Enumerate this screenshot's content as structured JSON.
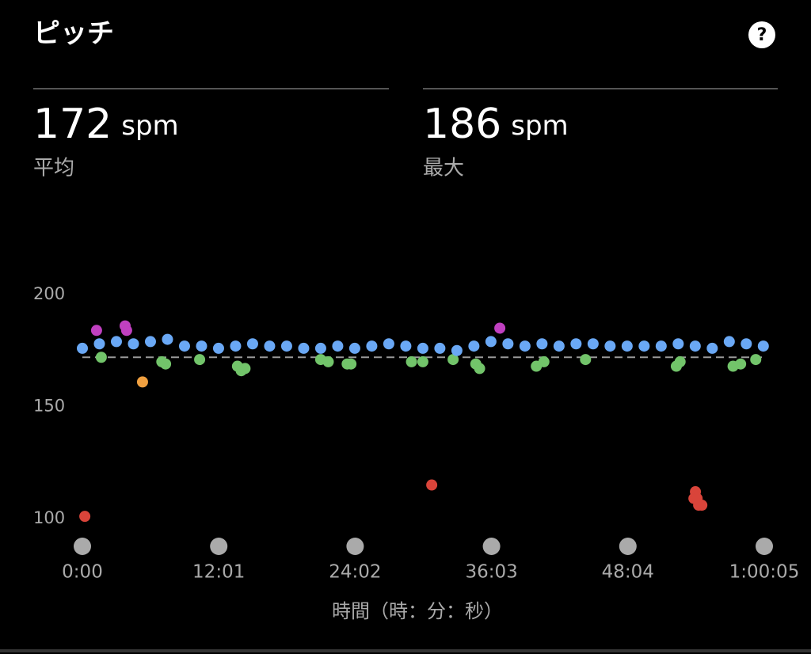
{
  "header": {
    "title": "ピッチ",
    "help": "?"
  },
  "stats": [
    {
      "value": 172,
      "unit": "spm",
      "label": "平均"
    },
    {
      "value": 186,
      "unit": "spm",
      "label": "最大"
    }
  ],
  "chart_data": {
    "type": "scatter",
    "x_label": "時間（時：分：秒）",
    "xlim": [
      0,
      3605
    ],
    "xticks": [
      {
        "value": 0,
        "label": "0:00"
      },
      {
        "value": 721,
        "label": "12:01"
      },
      {
        "value": 1442,
        "label": "24:02"
      },
      {
        "value": 2163,
        "label": "36:03"
      },
      {
        "value": 2884,
        "label": "48:04"
      },
      {
        "value": 3605,
        "label": "1:00:05"
      }
    ],
    "ylim": [
      100,
      200
    ],
    "yticks": [
      100,
      150,
      200
    ],
    "series": [
      {
        "color": "#72c46a",
        "x": [
          100,
          420,
          440,
          620,
          820,
          840,
          860,
          1260,
          1300,
          1400,
          1420,
          1740,
          1800,
          1960,
          2080,
          2100,
          2400,
          2440,
          2660,
          3140,
          3160,
          3440,
          3480,
          3560
        ],
        "values": [
          172,
          170,
          169,
          171,
          168,
          166,
          167,
          171,
          170,
          169,
          169,
          170,
          170,
          171,
          169,
          167,
          168,
          170,
          171,
          168,
          170,
          168,
          169,
          171
        ]
      },
      {
        "color": "#6aa8f5",
        "x": [
          0,
          90,
          180,
          270,
          360,
          450,
          540,
          630,
          720,
          810,
          900,
          990,
          1080,
          1170,
          1260,
          1350,
          1440,
          1530,
          1620,
          1710,
          1800,
          1890,
          1980,
          2070,
          2160,
          2250,
          2340,
          2430,
          2520,
          2610,
          2700,
          2790,
          2880,
          2970,
          3060,
          3150,
          3240,
          3330,
          3420,
          3510,
          3600
        ],
        "values": [
          176,
          178,
          179,
          178,
          179,
          180,
          177,
          177,
          176,
          177,
          178,
          177,
          177,
          176,
          176,
          177,
          176,
          177,
          178,
          177,
          176,
          176,
          175,
          177,
          179,
          178,
          177,
          178,
          177,
          178,
          178,
          177,
          177,
          177,
          177,
          178,
          177,
          176,
          179,
          178,
          177
        ]
      },
      {
        "color": "#c040c0",
        "x": [
          75,
          226,
          234,
          2207
        ],
        "values": [
          184,
          186,
          184,
          185
        ]
      },
      {
        "color": "#f0a040",
        "x": [
          318
        ],
        "values": [
          161
        ]
      },
      {
        "color": "#d9443a",
        "x": [
          13,
          1847,
          3233,
          3241,
          3250,
          3258,
          3275
        ],
        "values": [
          101,
          115,
          109,
          112,
          109,
          106,
          106
        ]
      }
    ]
  }
}
